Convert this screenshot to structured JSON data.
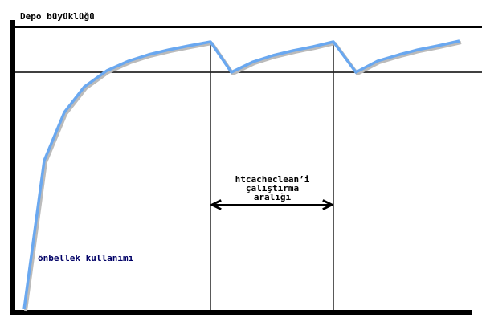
{
  "diagram": {
    "y_axis_label": "Depo büyüklüğü",
    "curve_label": "önbellek kullanımı",
    "interval_label": [
      "htcacheclean’i",
      "çalıştırma",
      "aralığı"
    ],
    "colors": {
      "curve": "#6aa8f0",
      "curve_label": "#000066",
      "lines": "#000000"
    }
  }
}
